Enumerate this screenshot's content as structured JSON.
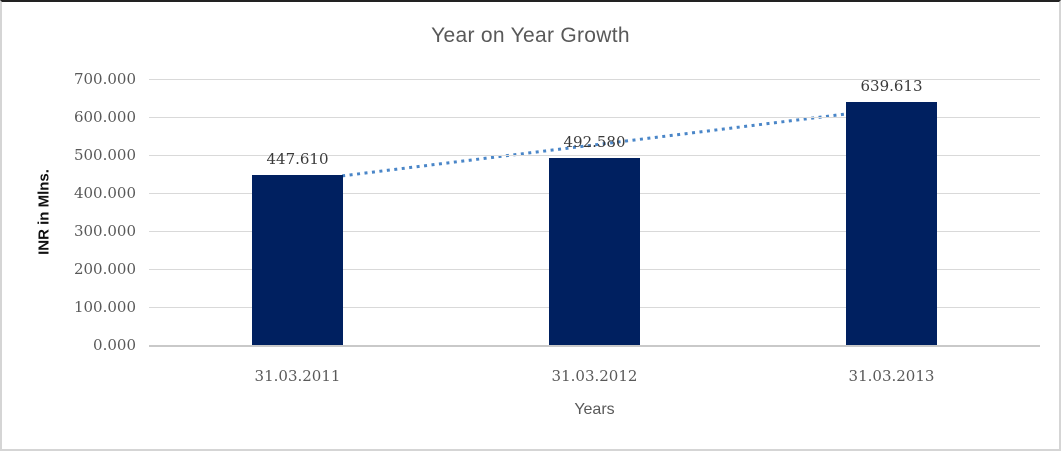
{
  "chart_data": {
    "type": "bar",
    "title": "Year on Year Growth",
    "xlabel": "Years",
    "ylabel": "INR in Mlns.",
    "categories": [
      "31.03.2011",
      "31.03.2012",
      "31.03.2013"
    ],
    "values": [
      447.61,
      492.58,
      639.613
    ],
    "data_labels": [
      "447.610",
      "492.580",
      "639.613"
    ],
    "ylim": [
      0,
      700
    ],
    "ytick_values": [
      0,
      100,
      200,
      300,
      400,
      500,
      600,
      700
    ],
    "ytick_labels": [
      "0.000",
      "100.000",
      "200.000",
      "300.000",
      "400.000",
      "500.000",
      "600.000",
      "700.000"
    ],
    "grid": "horizontal",
    "legend": "none",
    "trendline": {
      "type": "linear",
      "style": "dotted"
    },
    "colors": {
      "bar": "#002060",
      "trendline": "#4a86c8",
      "gridline": "#d9d9d9",
      "axis_line": "#c9c9c9",
      "title_text": "#595959",
      "tick_text": "#595959",
      "data_label_text": "#3a3a3a"
    }
  }
}
